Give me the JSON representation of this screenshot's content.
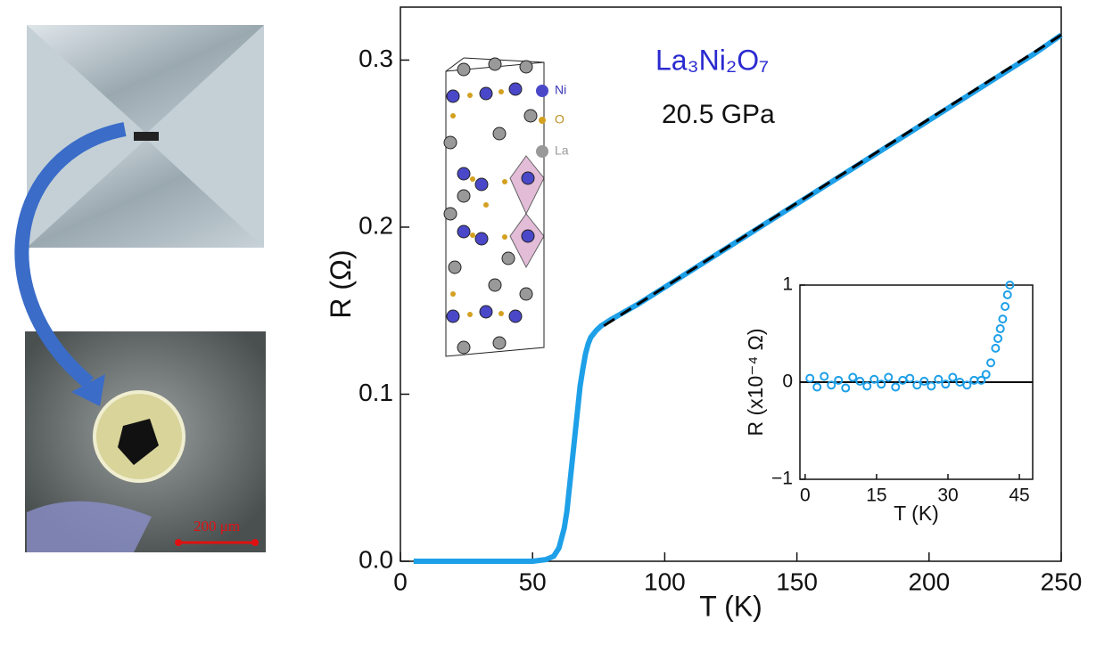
{
  "chart_data": [
    {
      "type": "line",
      "xlabel": "T (K)",
      "ylabel": "R (Ω)",
      "annotations": [
        "La₃Ni₂O₇",
        "20.5 GPa"
      ],
      "structure_labels": [
        "Ni",
        "O",
        "La"
      ],
      "xlim": [
        0,
        250
      ],
      "ylim": [
        0,
        0.3317
      ],
      "xticks": [
        0,
        50,
        100,
        150,
        200,
        250
      ],
      "yticks": [
        {
          "value": 0,
          "label": "0.0"
        },
        0.1,
        0.2,
        0.3
      ],
      "series": [
        {
          "color": "#1ea0e8",
          "style": "solid",
          "x": [
            5,
            10,
            20,
            30,
            40,
            50,
            55,
            58,
            60,
            62,
            63,
            64,
            65,
            66,
            67,
            68,
            69,
            70,
            71,
            72,
            74,
            76,
            80,
            90,
            100,
            110,
            120,
            130,
            140,
            150,
            160,
            170,
            180,
            190,
            200,
            210,
            220,
            230,
            240,
            250
          ],
          "values": [
            0,
            0,
            0,
            0,
            0,
            0,
            0.001,
            0.003,
            0.008,
            0.02,
            0.03,
            0.045,
            0.06,
            0.075,
            0.09,
            0.105,
            0.115,
            0.124,
            0.13,
            0.134,
            0.138,
            0.141,
            0.145,
            0.154,
            0.164,
            0.174,
            0.184,
            0.194,
            0.204,
            0.214,
            0.224,
            0.234,
            0.244,
            0.254,
            0.264,
            0.274,
            0.284,
            0.294,
            0.304,
            0.315
          ]
        },
        {
          "color": "#000000",
          "style": "dashed",
          "x": [
            77,
            250
          ],
          "values": [
            0.141,
            0.315
          ]
        }
      ]
    },
    {
      "type": "scatter",
      "xlabel": "T (K)",
      "ylabel": "R (x10⁻⁴ Ω)",
      "xlim": [
        -1.1,
        47.8
      ],
      "ylim": [
        -1,
        1
      ],
      "xticks": [
        0,
        15,
        30,
        45
      ],
      "yticks": [
        {
          "value": -1,
          "label": "−1"
        },
        0,
        1
      ],
      "hline": 0,
      "series": [
        {
          "color": "#1ea0e8",
          "x": [
            1,
            2.5,
            4,
            5.5,
            7,
            8.5,
            10,
            11.5,
            13,
            14.5,
            16,
            17.5,
            19,
            20.5,
            22,
            23.5,
            25,
            26.5,
            28,
            29.5,
            31,
            32.5,
            34,
            35.5,
            37,
            38,
            39,
            40,
            40.5,
            41,
            41.5,
            42,
            42.5,
            43
          ],
          "values": [
            0.04,
            -0.05,
            0.06,
            -0.03,
            0.02,
            -0.06,
            0.05,
            0.01,
            -0.04,
            0.03,
            -0.02,
            0.05,
            -0.05,
            0.02,
            0.04,
            -0.03,
            0.01,
            -0.04,
            0.03,
            -0.02,
            0.05,
            0.0,
            -0.03,
            0.02,
            0.02,
            0.08,
            0.2,
            0.35,
            0.45,
            0.55,
            0.65,
            0.78,
            0.9,
            1.0
          ]
        }
      ]
    }
  ],
  "photo": {
    "scale_bar": "200 μm"
  }
}
